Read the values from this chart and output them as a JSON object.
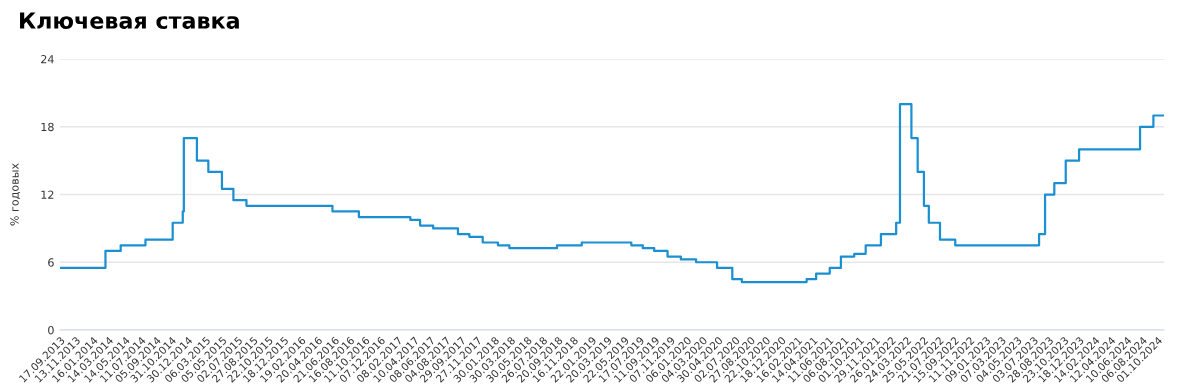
{
  "chart_data": {
    "type": "step",
    "title": "Ключевая ставка",
    "ylabel": "% годовых",
    "x": [
      "2013-09-17",
      "2014-03-03",
      "2014-04-28",
      "2014-07-28",
      "2014-11-05",
      "2014-12-12",
      "2014-12-16",
      "2015-02-02",
      "2015-03-16",
      "2015-05-05",
      "2015-06-16",
      "2015-08-03",
      "2016-06-14",
      "2016-09-19",
      "2017-03-27",
      "2017-05-02",
      "2017-06-19",
      "2017-09-18",
      "2017-10-30",
      "2017-12-18",
      "2018-02-12",
      "2018-03-26",
      "2018-09-17",
      "2018-12-17",
      "2019-06-17",
      "2019-07-29",
      "2019-09-09",
      "2019-10-28",
      "2019-12-16",
      "2020-02-10",
      "2020-04-27",
      "2020-06-22",
      "2020-07-27",
      "2021-03-22",
      "2021-04-26",
      "2021-06-15",
      "2021-07-26",
      "2021-09-13",
      "2021-10-25",
      "2021-12-20",
      "2022-02-14",
      "2022-02-28",
      "2022-04-11",
      "2022-05-04",
      "2022-05-27",
      "2022-06-14",
      "2022-07-25",
      "2022-09-19",
      "2023-07-24",
      "2023-08-15",
      "2023-09-18",
      "2023-10-30",
      "2023-12-18",
      "2024-07-29",
      "2024-09-16",
      "2024-10-25"
    ],
    "series": [
      {
        "color": "#1a8fd1",
        "values": [
          5.5,
          7,
          7.5,
          8,
          9.5,
          10.5,
          17,
          15,
          14,
          12.5,
          11.5,
          11,
          10.5,
          10,
          9.75,
          9.25,
          9,
          8.5,
          8.25,
          7.75,
          7.5,
          7.25,
          7.5,
          7.75,
          7.5,
          7.25,
          7,
          6.5,
          6.25,
          6,
          5.5,
          4.5,
          4.25,
          4.5,
          5,
          5.5,
          6.5,
          6.75,
          7.5,
          8.5,
          9.5,
          20,
          17,
          14,
          11,
          9.5,
          8,
          7.5,
          8.5,
          12,
          13,
          15,
          16,
          18,
          19,
          19
        ]
      }
    ],
    "xlim": [
      "2013-09-17",
      "2024-10-25"
    ],
    "ylim": [
      0,
      24
    ],
    "yticks": [
      0,
      6,
      12,
      18,
      24
    ],
    "grid": "y",
    "marker": "none",
    "line_style": "solid",
    "xticks": [
      {
        "value": "2013-09-17",
        "label": "17.09.2013"
      },
      {
        "value": "2013-11-13",
        "label": "13.11.2013"
      },
      {
        "value": "2014-01-16",
        "label": "16.01.2014"
      },
      {
        "value": "2014-03-14",
        "label": "14.03.2014"
      },
      {
        "value": "2014-05-14",
        "label": "14.05.2014"
      },
      {
        "value": "2014-07-11",
        "label": "11.07.2014"
      },
      {
        "value": "2014-09-05",
        "label": "05.09.2014"
      },
      {
        "value": "2014-10-31",
        "label": "31.10.2014"
      },
      {
        "value": "2014-12-30",
        "label": "30.12.2014"
      },
      {
        "value": "2015-03-06",
        "label": "06.03.2015"
      },
      {
        "value": "2015-05-05",
        "label": "05.05.2015"
      },
      {
        "value": "2015-07-02",
        "label": "02.07.2015"
      },
      {
        "value": "2015-08-27",
        "label": "27.08.2015"
      },
      {
        "value": "2015-10-22",
        "label": "22.10.2015"
      },
      {
        "value": "2015-12-18",
        "label": "18.12.2015"
      },
      {
        "value": "2016-02-19",
        "label": "19.02.2016"
      },
      {
        "value": "2016-04-20",
        "label": "20.04.2016"
      },
      {
        "value": "2016-06-21",
        "label": "21.06.2016"
      },
      {
        "value": "2016-08-16",
        "label": "16.08.2016"
      },
      {
        "value": "2016-10-11",
        "label": "11.10.2016"
      },
      {
        "value": "2016-12-07",
        "label": "07.12.2016"
      },
      {
        "value": "2017-02-08",
        "label": "08.02.2017"
      },
      {
        "value": "2017-04-10",
        "label": "10.04.2017"
      },
      {
        "value": "2017-06-08",
        "label": "08.06.2017"
      },
      {
        "value": "2017-08-04",
        "label": "04.08.2017"
      },
      {
        "value": "2017-09-29",
        "label": "29.09.2017"
      },
      {
        "value": "2017-11-27",
        "label": "27.11.2017"
      },
      {
        "value": "2018-01-30",
        "label": "30.01.2018"
      },
      {
        "value": "2018-03-30",
        "label": "30.03.2018"
      },
      {
        "value": "2018-05-30",
        "label": "30.05.2018"
      },
      {
        "value": "2018-07-26",
        "label": "26.07.2018"
      },
      {
        "value": "2018-09-20",
        "label": "20.09.2018"
      },
      {
        "value": "2018-11-16",
        "label": "16.11.2018"
      },
      {
        "value": "2019-01-22",
        "label": "22.01.2019"
      },
      {
        "value": "2019-03-20",
        "label": "20.03.2019"
      },
      {
        "value": "2019-05-22",
        "label": "22.05.2019"
      },
      {
        "value": "2019-07-17",
        "label": "17.07.2019"
      },
      {
        "value": "2019-09-11",
        "label": "11.09.2019"
      },
      {
        "value": "2019-11-07",
        "label": "07.11.2019"
      },
      {
        "value": "2020-01-06",
        "label": "06.01.2020"
      },
      {
        "value": "2020-03-04",
        "label": "04.03.2020"
      },
      {
        "value": "2020-04-30",
        "label": "30.04.2020"
      },
      {
        "value": "2020-07-02",
        "label": "02.07.2020"
      },
      {
        "value": "2020-08-27",
        "label": "27.08.2020"
      },
      {
        "value": "2020-10-22",
        "label": "22.10.2020"
      },
      {
        "value": "2020-12-18",
        "label": "18.12.2020"
      },
      {
        "value": "2021-02-16",
        "label": "16.02.2021"
      },
      {
        "value": "2021-04-14",
        "label": "14.04.2021"
      },
      {
        "value": "2021-06-11",
        "label": "11.06.2021"
      },
      {
        "value": "2021-08-06",
        "label": "06.08.2021"
      },
      {
        "value": "2021-10-01",
        "label": "01.10.2021"
      },
      {
        "value": "2021-11-29",
        "label": "29.11.2021"
      },
      {
        "value": "2022-01-26",
        "label": "26.01.2022"
      },
      {
        "value": "2022-03-24",
        "label": "24.03.2022"
      },
      {
        "value": "2022-05-25",
        "label": "25.05.2022"
      },
      {
        "value": "2022-07-21",
        "label": "21.07.2022"
      },
      {
        "value": "2022-09-15",
        "label": "15.09.2022"
      },
      {
        "value": "2022-11-11",
        "label": "11.11.2022"
      },
      {
        "value": "2023-01-09",
        "label": "09.01.2023"
      },
      {
        "value": "2023-03-07",
        "label": "07.03.2023"
      },
      {
        "value": "2023-05-04",
        "label": "04.05.2023"
      },
      {
        "value": "2023-07-03",
        "label": "03.07.2023"
      },
      {
        "value": "2023-08-28",
        "label": "28.08.2023"
      },
      {
        "value": "2023-10-23",
        "label": "23.10.2023"
      },
      {
        "value": "2023-12-18",
        "label": "18.12.2023"
      },
      {
        "value": "2024-02-14",
        "label": "14.02.2024"
      },
      {
        "value": "2024-04-12",
        "label": "12.04.2024"
      },
      {
        "value": "2024-06-10",
        "label": "10.06.2024"
      },
      {
        "value": "2024-08-06",
        "label": "06.08.2024"
      },
      {
        "value": "2024-10-01",
        "label": "01.10.2024"
      }
    ]
  }
}
